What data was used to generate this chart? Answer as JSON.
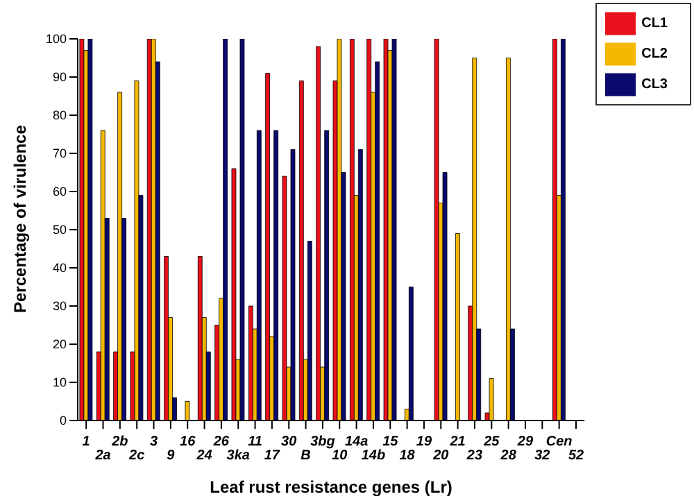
{
  "chart_data": {
    "type": "bar",
    "xlabel": "Leaf rust resistance genes (Lr)",
    "ylabel": "Percentage of virulence",
    "categories": [
      "1",
      "2a",
      "2b",
      "2c",
      "3",
      "9",
      "16",
      "24",
      "26",
      "3ka",
      "11",
      "17",
      "30",
      "B",
      "3bg",
      "10",
      "14a",
      "14b",
      "15",
      "18",
      "19",
      "20",
      "21",
      "23",
      "25",
      "28",
      "29",
      "32",
      "Cen",
      "52"
    ],
    "series": [
      {
        "name": "CL1",
        "color": "#e8101a",
        "values": [
          100,
          18,
          18,
          18,
          100,
          43,
          0,
          43,
          25,
          66,
          30,
          91,
          64,
          89,
          98,
          89,
          100,
          100,
          100,
          0,
          0,
          100,
          0,
          30,
          2,
          0,
          0,
          0,
          100,
          0
        ]
      },
      {
        "name": "CL2",
        "color": "#f5b800",
        "values": [
          97,
          76,
          86,
          89,
          100,
          27,
          5,
          27,
          32,
          16,
          24,
          22,
          14,
          16,
          14,
          100,
          59,
          86,
          97,
          3,
          0,
          57,
          49,
          95,
          11,
          95,
          0,
          0,
          59,
          0
        ]
      },
      {
        "name": "CL3",
        "color": "#0a0a6e",
        "values": [
          100,
          53,
          53,
          59,
          94,
          6,
          0,
          18,
          100,
          100,
          76,
          76,
          71,
          47,
          76,
          65,
          71,
          94,
          100,
          35,
          0,
          65,
          0,
          24,
          0,
          24,
          0,
          0,
          100,
          0
        ]
      }
    ],
    "ylim": [
      0,
      100
    ],
    "yticks": [
      0,
      10,
      20,
      30,
      40,
      50,
      60,
      70,
      80,
      90,
      100
    ],
    "grid": false,
    "legend": "top right"
  }
}
